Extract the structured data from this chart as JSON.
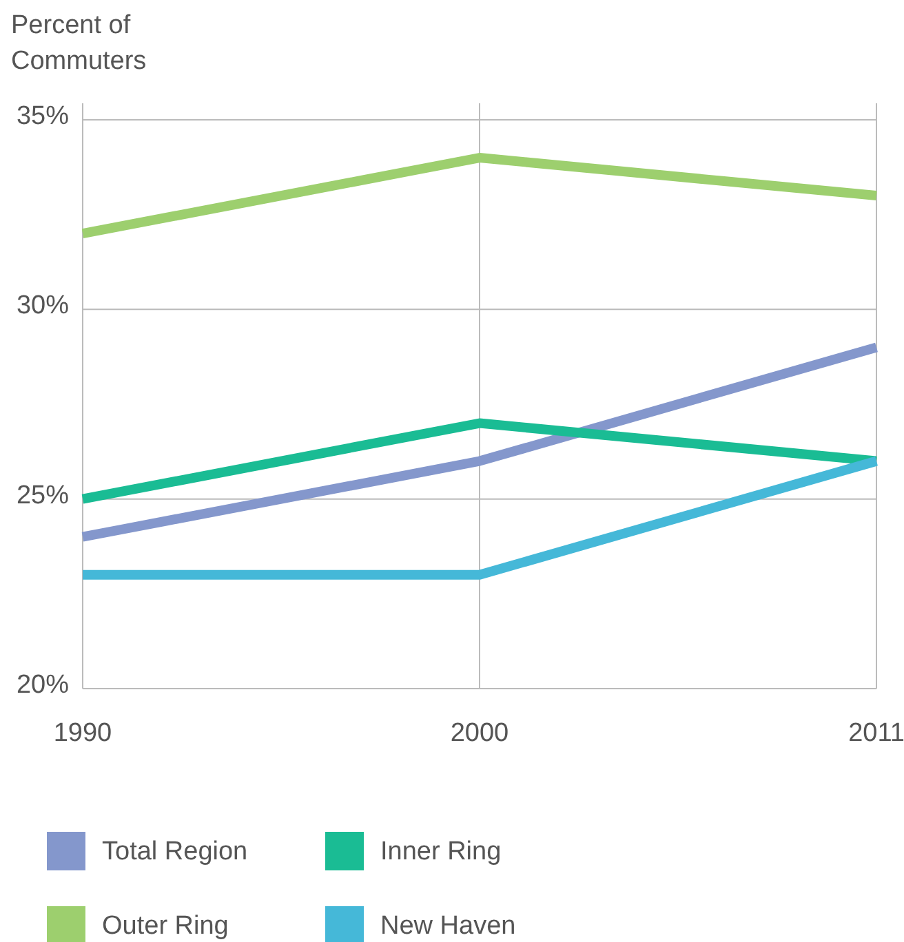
{
  "chart_data": {
    "type": "line",
    "ylabel": "Percent of\nCommuters",
    "categories": [
      "1990",
      "2000",
      "2011"
    ],
    "ylim": [
      20,
      35
    ],
    "yticks": [
      {
        "value": 20,
        "label": "20%"
      },
      {
        "value": 25,
        "label": "25%"
      },
      {
        "value": 30,
        "label": "30%"
      },
      {
        "value": 35,
        "label": "35%"
      }
    ],
    "grid": true,
    "legend": "bottom",
    "marker": "none",
    "line_style": "solid",
    "series": [
      {
        "name": "Total Region",
        "color": "#8497cc",
        "values": [
          24,
          26,
          29
        ]
      },
      {
        "name": "Inner Ring",
        "color": "#1abc94",
        "values": [
          25,
          27,
          26
        ]
      },
      {
        "name": "Outer Ring",
        "color": "#9dcf6e",
        "values": [
          32,
          34,
          33
        ]
      },
      {
        "name": "New Haven",
        "color": "#45b8d8",
        "values": [
          23,
          23,
          26
        ]
      }
    ]
  }
}
